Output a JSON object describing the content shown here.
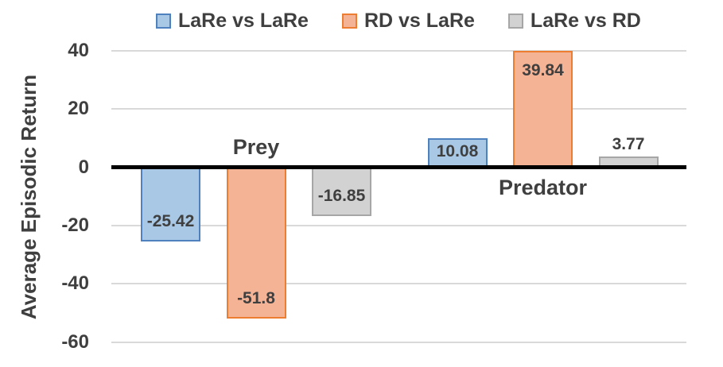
{
  "chart_data": {
    "type": "bar",
    "title": "",
    "xlabel": "",
    "ylabel": "Average Episodic Return",
    "ylim": [
      -60,
      40
    ],
    "yticks": [
      40,
      20,
      0,
      -20,
      -40,
      -60
    ],
    "grid": true,
    "legend_position": "top",
    "categories": [
      "Prey",
      "Predator"
    ],
    "series": [
      {
        "name": "LaRe vs LaRe",
        "values": [
          -25.42,
          10.08
        ],
        "labels": [
          "-25.42",
          "10.08"
        ],
        "fill": "#A9C8E5",
        "border": "#4E81BD"
      },
      {
        "name": "RD vs LaRe",
        "values": [
          -51.8,
          39.84
        ],
        "labels": [
          "-51.8",
          "39.84"
        ],
        "fill": "#F5B396",
        "border": "#ED7D31"
      },
      {
        "name": "LaRe vs RD",
        "values": [
          -16.85,
          3.77
        ],
        "labels": [
          "-16.85",
          "3.77"
        ],
        "fill": "#D2D2D2",
        "border": "#A6A6A6"
      }
    ]
  },
  "colors": {
    "grid": "#d9d9d9",
    "axis_line": "#000000",
    "text": "#3f3f3f",
    "background": "#ffffff"
  }
}
